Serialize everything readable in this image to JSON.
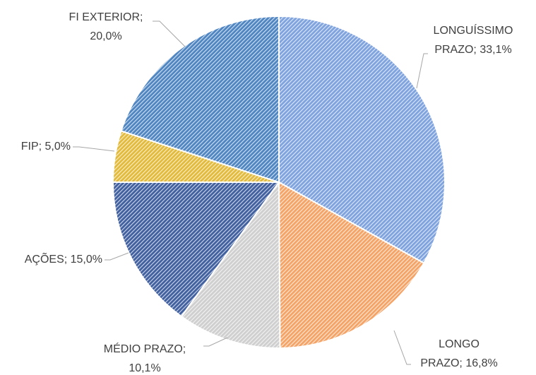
{
  "chart_data": {
    "type": "pie",
    "values": [
      33.1,
      16.8,
      10.1,
      15.0,
      5.0,
      20.0
    ],
    "value_labels": [
      [
        "LONGUÍSSIMO",
        "PRAZO; 33,1%"
      ],
      [
        "LONGO",
        "PRAZO; 16,8%"
      ],
      [
        "MÉDIO PRAZO;",
        "10,1%"
      ],
      [
        "AÇÕES; 15,0%"
      ],
      [
        "FIP; 5,0%"
      ],
      [
        "FI EXTERIOR;",
        "20,0%"
      ]
    ],
    "colors": [
      "#7fa3de",
      "#f5a467",
      "#cfcfcf",
      "#41609f",
      "#e3bb3c",
      "#4f86c2"
    ]
  }
}
